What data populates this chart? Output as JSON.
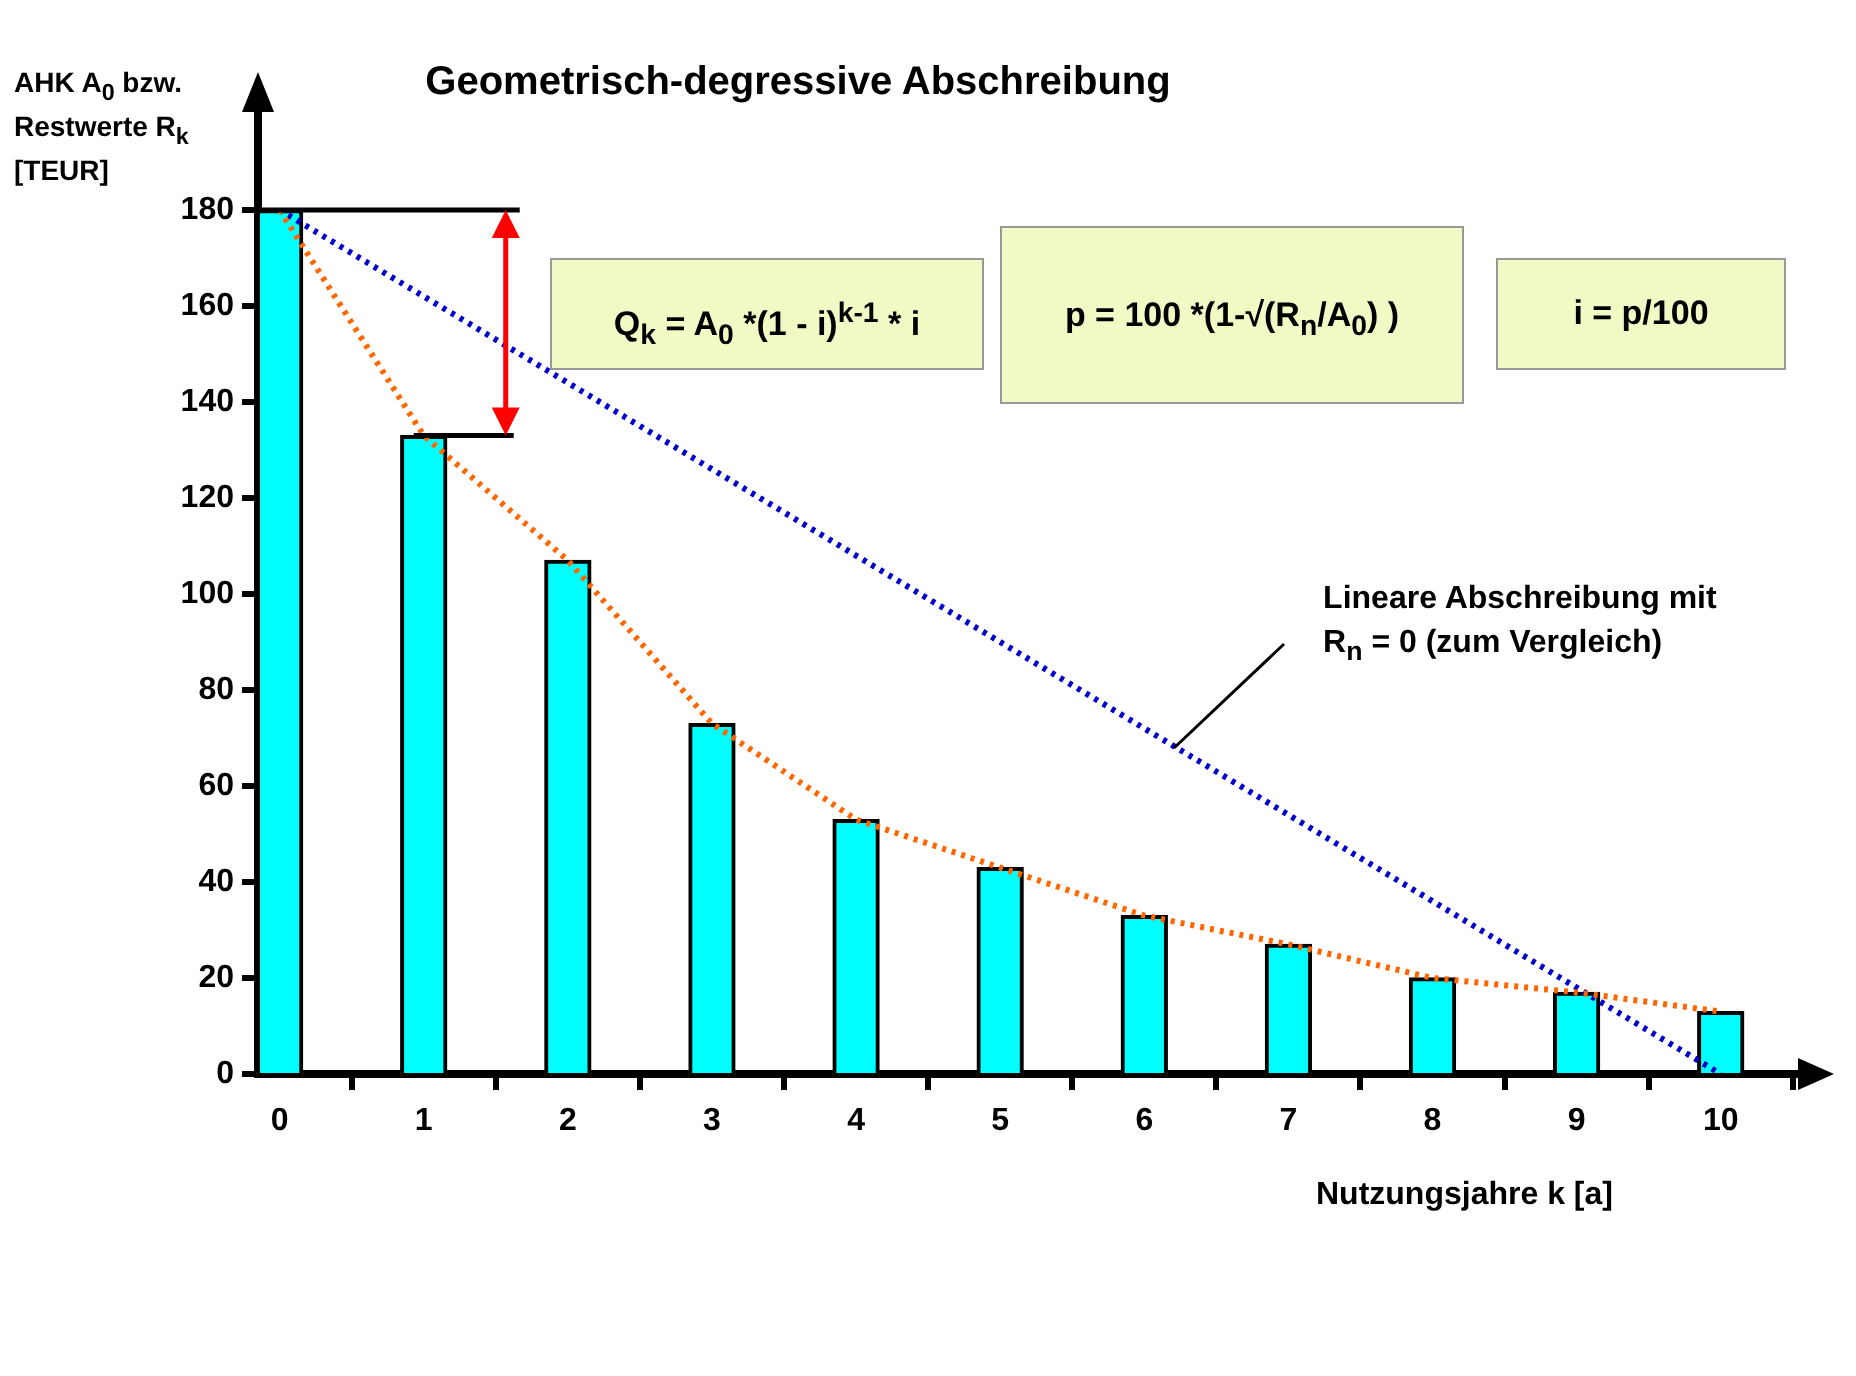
{
  "chart_data": {
    "type": "bar",
    "title": "Geometrisch-degressive Abschreibung",
    "xlabel": "Nutzungsjahre k [a]",
    "ylabel": "AHK A$_{0}$ bzw.\nRestwerte R$_{k}$\n[TEUR]",
    "x": [
      0,
      1,
      2,
      3,
      4,
      5,
      6,
      7,
      8,
      9,
      10
    ],
    "series": [
      {
        "color": "#00ffff",
        "values": [
          180,
          133,
          107,
          73,
          53,
          43,
          33,
          27,
          20,
          17,
          13
        ]
      },
      {
        "type": "line",
        "color": "#ff6600",
        "line_style": "dotted",
        "values": [
          180,
          133,
          107,
          73,
          53,
          43,
          33,
          27,
          20,
          17,
          13
        ]
      },
      {
        "type": "line",
        "color": "#0000cc",
        "line_style": "dotted",
        "x": [
          0,
          10
        ],
        "values": [
          180,
          0
        ]
      }
    ],
    "xlim": [
      -0.15,
      10.55
    ],
    "xticks": [
      0,
      1,
      2,
      3,
      4,
      5,
      6,
      7,
      8,
      9,
      10
    ],
    "ylim": [
      0,
      180
    ],
    "yticks": [
      0,
      20,
      40,
      60,
      80,
      100,
      120,
      140,
      160,
      180
    ],
    "grid": false,
    "legend": false,
    "marker": "none",
    "annotations": [
      "Q$_{k}$ = A$_{0}$ *(1 - i)$^{k-1}$ * i",
      "p = 100 *(1-√(R$_{n}$/A$_{0}$) )",
      "i = p/100",
      {
        "text": "Lineare Abschreibung mit\nR$_{n}$ = 0  (zum Vergleich)",
        "x": 6.2,
        "y": 68
      }
    ]
  }
}
